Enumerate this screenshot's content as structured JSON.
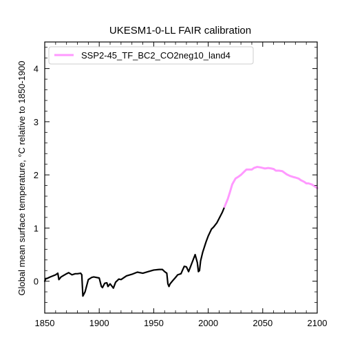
{
  "chart_data": {
    "type": "line",
    "title": "UKESM1-0-LL FAIR calibration",
    "xlabel": "",
    "ylabel": "Global mean surface temperature, °C relative to 1850-1900",
    "xlim": [
      1850,
      2100
    ],
    "ylim": [
      -0.6,
      4.5
    ],
    "xticks": [
      1850,
      1900,
      1950,
      2000,
      2050,
      2100
    ],
    "yticks": [
      0,
      1,
      2,
      3,
      4
    ],
    "legend": {
      "position": "top-left",
      "entries": [
        "SSP2-45_TF_BC2_CO2neg10_land4"
      ]
    },
    "series": [
      {
        "name": "",
        "color": "#000000",
        "x": [
          1850,
          1851,
          1852,
          1855,
          1860,
          1862,
          1863,
          1865,
          1870,
          1872,
          1875,
          1878,
          1880,
          1883,
          1884,
          1885,
          1887,
          1890,
          1893,
          1895,
          1900,
          1902,
          1903,
          1905,
          1907,
          1908,
          1910,
          1913,
          1915,
          1918,
          1920,
          1925,
          1930,
          1935,
          1940,
          1945,
          1950,
          1955,
          1958,
          1960,
          1962,
          1963,
          1964,
          1965,
          1967,
          1970,
          1972,
          1975,
          1978,
          1980,
          1982,
          1985,
          1988,
          1990,
          1991,
          1992,
          1993,
          1995,
          1998,
          2000,
          2003,
          2005,
          2008,
          2010,
          2013,
          2015
        ],
        "y": [
          0.0,
          0.05,
          0.05,
          0.08,
          0.12,
          0.15,
          0.03,
          0.08,
          0.14,
          0.16,
          0.12,
          0.14,
          0.14,
          0.15,
          0.12,
          -0.28,
          -0.2,
          0.03,
          0.07,
          0.08,
          0.06,
          -0.1,
          -0.12,
          -0.04,
          -0.03,
          -0.1,
          -0.05,
          -0.13,
          -0.02,
          0.04,
          0.03,
          0.1,
          0.13,
          0.17,
          0.15,
          0.18,
          0.21,
          0.22,
          0.22,
          0.18,
          0.15,
          -0.05,
          -0.1,
          -0.05,
          0.0,
          0.07,
          0.12,
          0.14,
          0.28,
          0.27,
          0.18,
          0.34,
          0.5,
          0.35,
          0.18,
          0.2,
          0.38,
          0.55,
          0.74,
          0.85,
          0.98,
          1.02,
          1.1,
          1.18,
          1.3,
          1.4
        ]
      },
      {
        "name": "SSP2-45_TF_BC2_CO2neg10_land4",
        "color": "#ff99ff",
        "x": [
          2015,
          2018,
          2020,
          2022,
          2025,
          2028,
          2030,
          2033,
          2035,
          2038,
          2040,
          2042,
          2045,
          2048,
          2050,
          2052,
          2055,
          2058,
          2060,
          2062,
          2065,
          2068,
          2070,
          2072,
          2075,
          2078,
          2080,
          2083,
          2085,
          2088,
          2090,
          2092,
          2095,
          2098,
          2100
        ],
        "y": [
          1.4,
          1.55,
          1.68,
          1.82,
          1.93,
          1.97,
          2.0,
          2.06,
          2.1,
          2.1,
          2.1,
          2.13,
          2.15,
          2.14,
          2.13,
          2.12,
          2.13,
          2.12,
          2.11,
          2.08,
          2.08,
          2.07,
          2.04,
          2.01,
          1.98,
          1.96,
          1.95,
          1.93,
          1.9,
          1.87,
          1.84,
          1.84,
          1.82,
          1.78,
          1.75
        ]
      }
    ]
  }
}
